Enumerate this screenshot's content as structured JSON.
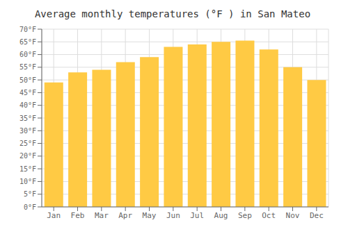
{
  "chart_data": {
    "type": "bar",
    "title": "Average monthly temperatures (°F ) in San Mateo",
    "categories": [
      "Jan",
      "Feb",
      "Mar",
      "Apr",
      "May",
      "Jun",
      "Jul",
      "Aug",
      "Sep",
      "Oct",
      "Nov",
      "Dec"
    ],
    "values": [
      49,
      53,
      54,
      57,
      59,
      63,
      64,
      65,
      65.5,
      62,
      55,
      50
    ],
    "color": "#FFCA44",
    "ylim": [
      0,
      70
    ],
    "yticks": [
      {
        "value": 0,
        "label": "0°F"
      },
      {
        "value": 5,
        "label": "5°F"
      },
      {
        "value": 10,
        "label": "10°F"
      },
      {
        "value": 15,
        "label": "15°F"
      },
      {
        "value": 20,
        "label": "20°F"
      },
      {
        "value": 25,
        "label": "25°F"
      },
      {
        "value": 30,
        "label": "30°F"
      },
      {
        "value": 35,
        "label": "35°F"
      },
      {
        "value": 40,
        "label": "40°F"
      },
      {
        "value": 45,
        "label": "45°F"
      },
      {
        "value": 50,
        "label": "50°F"
      },
      {
        "value": 55,
        "label": "55°F"
      },
      {
        "value": 60,
        "label": "60°F"
      },
      {
        "value": 65,
        "label": "65°F"
      },
      {
        "value": 70,
        "label": "70°F"
      }
    ],
    "grid": true
  }
}
